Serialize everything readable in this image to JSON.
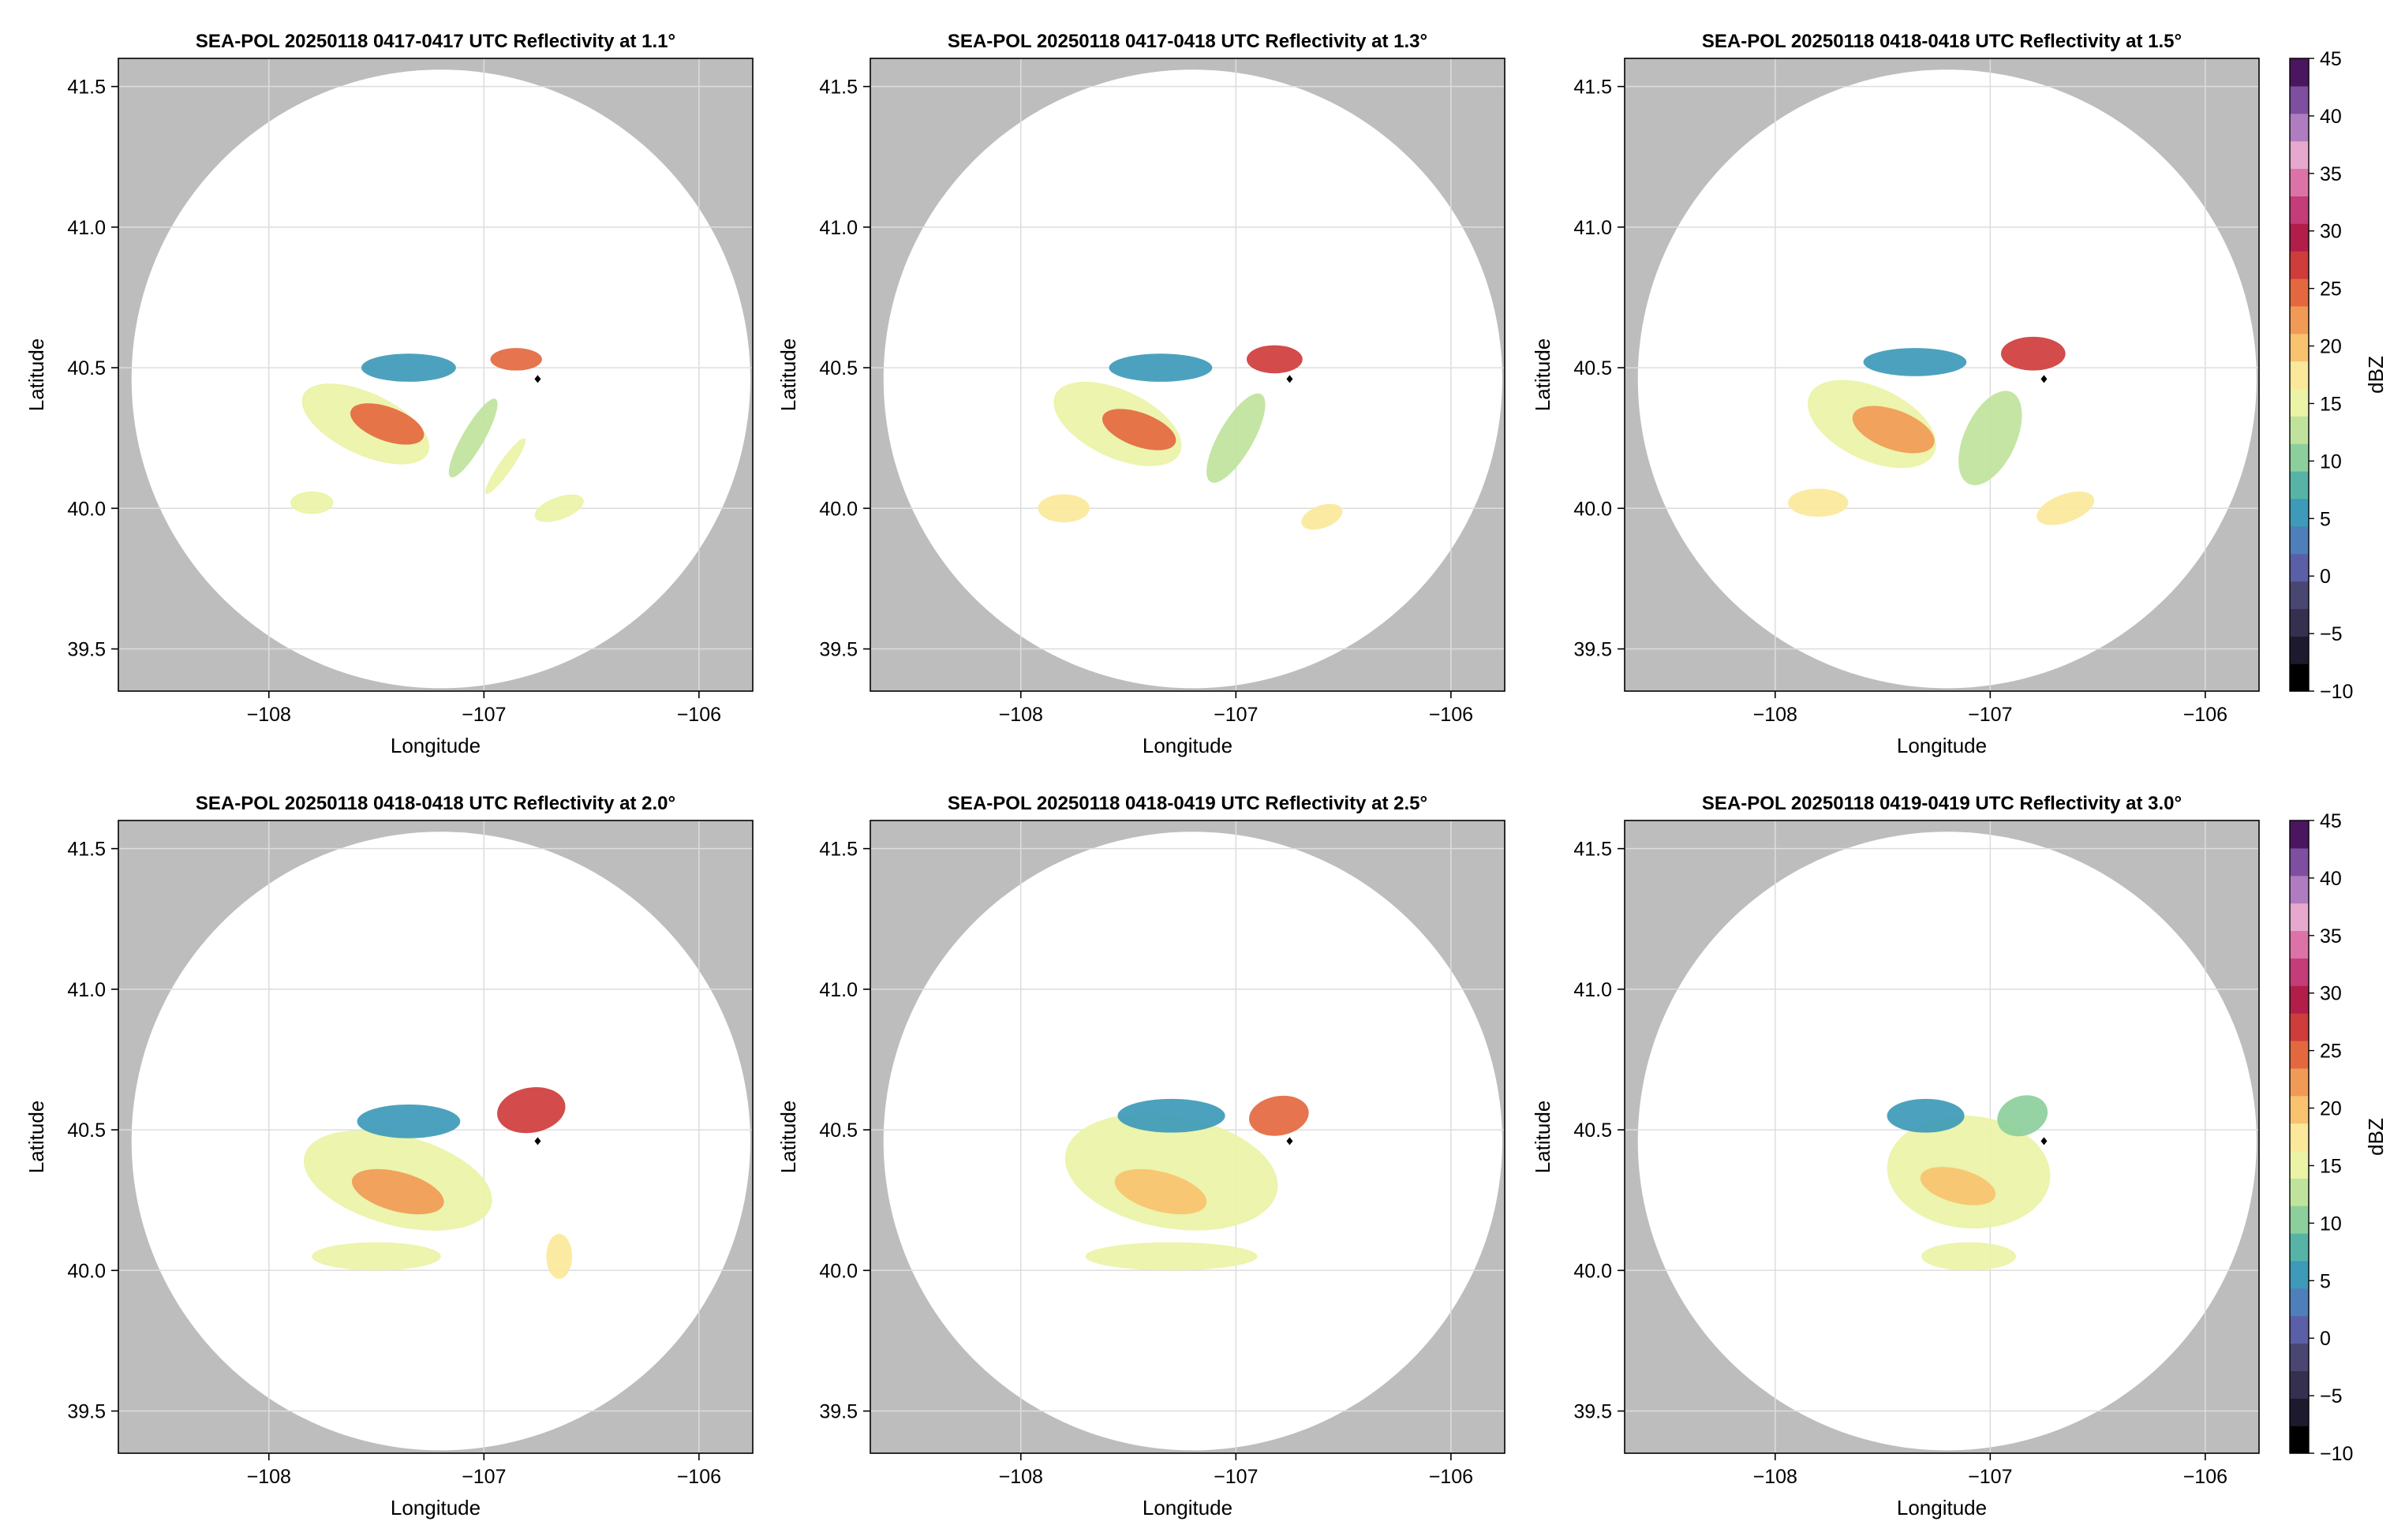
{
  "figure": {
    "colorbar": {
      "label": "dBZ",
      "ticks": [
        45,
        40,
        35,
        30,
        25,
        20,
        15,
        10,
        5,
        0,
        -5,
        -10
      ],
      "tick_labels": [
        "45",
        "40",
        "35",
        "30",
        "25",
        "20",
        "15",
        "10",
        "5",
        "0",
        "−5",
        "−10"
      ],
      "range": [
        -10,
        45
      ],
      "colormap": [
        "#000000",
        "#1d1a2e",
        "#35304f",
        "#4a4672",
        "#5a5fa8",
        "#4f7fba",
        "#3d9ab8",
        "#56b3a6",
        "#8ccf9c",
        "#bfe39c",
        "#eaf3a6",
        "#fbe89a",
        "#f8c26f",
        "#f19a55",
        "#e4683f",
        "#cf3c3c",
        "#b21e4a",
        "#c43c78",
        "#dd72a6",
        "#e6a8cc",
        "#b07cc0",
        "#7e4fa1",
        "#4a1660"
      ]
    },
    "colors": {
      "out_of_range": "#bdbdbd",
      "radar_coverage": "#ffffff",
      "grid": "#dddddd",
      "radar_site": "#000000"
    }
  },
  "chart_data": [
    {
      "type": "heatmap",
      "title": "SEA-POL 20250118 0417-0417 UTC Reflectivity at 1.1°",
      "xlabel": "Longitude",
      "ylabel": "Latitude",
      "xlim": [
        -108.7,
        -105.75
      ],
      "ylim": [
        39.35,
        41.6
      ],
      "xticks": [
        -108,
        -107,
        -106
      ],
      "xtick_labels": [
        "−108",
        "−107",
        "−106"
      ],
      "yticks": [
        39.5,
        40.0,
        40.5,
        41.0,
        41.5
      ],
      "ytick_labels": [
        "39.5",
        "40.0",
        "40.5",
        "41.0",
        "41.5"
      ],
      "grid": true,
      "radar_site": {
        "lon": -106.75,
        "lat": 40.46
      },
      "coverage_circle": {
        "center_lon": -107.2,
        "center_lat": 40.46,
        "radius_lat_deg": 1.1
      },
      "echoes": [
        {
          "lon": -107.55,
          "lat": 40.3,
          "rx": 0.32,
          "ry": 0.11,
          "rot": 25,
          "dbz": 16
        },
        {
          "lon": -107.45,
          "lat": 40.3,
          "rx": 0.18,
          "ry": 0.06,
          "rot": 20,
          "dbz": 24
        },
        {
          "lon": -107.35,
          "lat": 40.5,
          "rx": 0.22,
          "ry": 0.05,
          "rot": 0,
          "dbz": 6
        },
        {
          "lon": -106.85,
          "lat": 40.53,
          "rx": 0.12,
          "ry": 0.04,
          "rot": 0,
          "dbz": 26
        },
        {
          "lon": -107.05,
          "lat": 40.25,
          "rx": 0.05,
          "ry": 0.16,
          "rot": 30,
          "dbz": 12
        },
        {
          "lon": -106.9,
          "lat": 40.15,
          "rx": 0.03,
          "ry": 0.12,
          "rot": 35,
          "dbz": 14
        },
        {
          "lon": -107.8,
          "lat": 40.02,
          "rx": 0.1,
          "ry": 0.04,
          "rot": 0,
          "dbz": 16
        },
        {
          "lon": -106.65,
          "lat": 40.0,
          "rx": 0.12,
          "ry": 0.04,
          "rot": -20,
          "dbz": 15
        }
      ]
    },
    {
      "type": "heatmap",
      "title": "SEA-POL 20250118 0417-0418 UTC Reflectivity at 1.3°",
      "xlabel": "Longitude",
      "ylabel": "Latitude",
      "xlim": [
        -108.7,
        -105.75
      ],
      "ylim": [
        39.35,
        41.6
      ],
      "xticks": [
        -108,
        -107,
        -106
      ],
      "xtick_labels": [
        "−108",
        "−107",
        "−106"
      ],
      "yticks": [
        39.5,
        40.0,
        40.5,
        41.0,
        41.5
      ],
      "ytick_labels": [
        "39.5",
        "40.0",
        "40.5",
        "41.0",
        "41.5"
      ],
      "grid": true,
      "radar_site": {
        "lon": -106.75,
        "lat": 40.46
      },
      "coverage_circle": {
        "center_lon": -107.2,
        "center_lat": 40.46,
        "radius_lat_deg": 1.1
      },
      "echoes": [
        {
          "lon": -107.55,
          "lat": 40.3,
          "rx": 0.32,
          "ry": 0.12,
          "rot": 25,
          "dbz": 16
        },
        {
          "lon": -107.45,
          "lat": 40.28,
          "rx": 0.18,
          "ry": 0.06,
          "rot": 20,
          "dbz": 24
        },
        {
          "lon": -107.35,
          "lat": 40.5,
          "rx": 0.24,
          "ry": 0.05,
          "rot": 0,
          "dbz": 6
        },
        {
          "lon": -106.82,
          "lat": 40.53,
          "rx": 0.13,
          "ry": 0.05,
          "rot": 0,
          "dbz": 27
        },
        {
          "lon": -107.0,
          "lat": 40.25,
          "rx": 0.08,
          "ry": 0.18,
          "rot": 30,
          "dbz": 12
        },
        {
          "lon": -107.8,
          "lat": 40.0,
          "rx": 0.12,
          "ry": 0.05,
          "rot": 0,
          "dbz": 17
        },
        {
          "lon": -106.6,
          "lat": 39.97,
          "rx": 0.1,
          "ry": 0.04,
          "rot": -20,
          "dbz": 18
        }
      ]
    },
    {
      "type": "heatmap",
      "title": "SEA-POL 20250118 0418-0418 UTC Reflectivity at 1.5°",
      "xlabel": "Longitude",
      "ylabel": "Latitude",
      "xlim": [
        -108.7,
        -105.75
      ],
      "ylim": [
        39.35,
        41.6
      ],
      "xticks": [
        -108,
        -107,
        -106
      ],
      "xtick_labels": [
        "−108",
        "−107",
        "−106"
      ],
      "yticks": [
        39.5,
        40.0,
        40.5,
        41.0,
        41.5
      ],
      "ytick_labels": [
        "39.5",
        "40.0",
        "40.5",
        "41.0",
        "41.5"
      ],
      "grid": true,
      "radar_site": {
        "lon": -106.75,
        "lat": 40.46
      },
      "coverage_circle": {
        "center_lon": -107.2,
        "center_lat": 40.46,
        "radius_lat_deg": 1.1
      },
      "echoes": [
        {
          "lon": -107.55,
          "lat": 40.3,
          "rx": 0.32,
          "ry": 0.13,
          "rot": 25,
          "dbz": 16
        },
        {
          "lon": -107.45,
          "lat": 40.28,
          "rx": 0.2,
          "ry": 0.07,
          "rot": 20,
          "dbz": 23
        },
        {
          "lon": -107.35,
          "lat": 40.52,
          "rx": 0.24,
          "ry": 0.05,
          "rot": 0,
          "dbz": 6
        },
        {
          "lon": -106.8,
          "lat": 40.55,
          "rx": 0.15,
          "ry": 0.06,
          "rot": 0,
          "dbz": 27
        },
        {
          "lon": -107.0,
          "lat": 40.25,
          "rx": 0.12,
          "ry": 0.18,
          "rot": 25,
          "dbz": 12
        },
        {
          "lon": -107.8,
          "lat": 40.02,
          "rx": 0.14,
          "ry": 0.05,
          "rot": 0,
          "dbz": 17
        },
        {
          "lon": -106.65,
          "lat": 40.0,
          "rx": 0.14,
          "ry": 0.05,
          "rot": -20,
          "dbz": 18
        }
      ]
    },
    {
      "type": "heatmap",
      "title": "SEA-POL 20250118 0418-0418 UTC Reflectivity at 2.0°",
      "xlabel": "Longitude",
      "ylabel": "Latitude",
      "xlim": [
        -108.7,
        -105.75
      ],
      "ylim": [
        39.35,
        41.6
      ],
      "xticks": [
        -108,
        -107,
        -106
      ],
      "xtick_labels": [
        "−108",
        "−107",
        "−106"
      ],
      "yticks": [
        39.5,
        40.0,
        40.5,
        41.0,
        41.5
      ],
      "ytick_labels": [
        "39.5",
        "40.0",
        "40.5",
        "41.0",
        "41.5"
      ],
      "grid": true,
      "radar_site": {
        "lon": -106.75,
        "lat": 40.46
      },
      "coverage_circle": {
        "center_lon": -107.2,
        "center_lat": 40.46,
        "radius_lat_deg": 1.1
      },
      "echoes": [
        {
          "lon": -107.4,
          "lat": 40.32,
          "rx": 0.45,
          "ry": 0.16,
          "rot": 15,
          "dbz": 16
        },
        {
          "lon": -107.4,
          "lat": 40.28,
          "rx": 0.22,
          "ry": 0.07,
          "rot": 15,
          "dbz": 23
        },
        {
          "lon": -107.35,
          "lat": 40.53,
          "rx": 0.24,
          "ry": 0.06,
          "rot": 0,
          "dbz": 5
        },
        {
          "lon": -106.78,
          "lat": 40.57,
          "rx": 0.16,
          "ry": 0.08,
          "rot": -10,
          "dbz": 28
        },
        {
          "lon": -107.5,
          "lat": 40.05,
          "rx": 0.3,
          "ry": 0.05,
          "rot": 0,
          "dbz": 15
        },
        {
          "lon": -106.65,
          "lat": 40.05,
          "rx": 0.06,
          "ry": 0.08,
          "rot": 0,
          "dbz": 18
        }
      ]
    },
    {
      "type": "heatmap",
      "title": "SEA-POL 20250118 0418-0419 UTC Reflectivity at 2.5°",
      "xlabel": "Longitude",
      "ylabel": "Latitude",
      "xlim": [
        -108.7,
        -105.75
      ],
      "ylim": [
        39.35,
        41.6
      ],
      "xticks": [
        -108,
        -107,
        -106
      ],
      "xtick_labels": [
        "−108",
        "−107",
        "−106"
      ],
      "yticks": [
        39.5,
        40.0,
        40.5,
        41.0,
        41.5
      ],
      "ytick_labels": [
        "39.5",
        "40.0",
        "40.5",
        "41.0",
        "41.5"
      ],
      "grid": true,
      "radar_site": {
        "lon": -106.75,
        "lat": 40.46
      },
      "coverage_circle": {
        "center_lon": -107.2,
        "center_lat": 40.46,
        "radius_lat_deg": 1.1
      },
      "echoes": [
        {
          "lon": -107.3,
          "lat": 40.35,
          "rx": 0.5,
          "ry": 0.2,
          "rot": 10,
          "dbz": 15
        },
        {
          "lon": -107.35,
          "lat": 40.28,
          "rx": 0.22,
          "ry": 0.07,
          "rot": 15,
          "dbz": 21
        },
        {
          "lon": -107.3,
          "lat": 40.55,
          "rx": 0.25,
          "ry": 0.06,
          "rot": 0,
          "dbz": 6
        },
        {
          "lon": -106.8,
          "lat": 40.55,
          "rx": 0.14,
          "ry": 0.07,
          "rot": -10,
          "dbz": 25
        },
        {
          "lon": -107.3,
          "lat": 40.05,
          "rx": 0.4,
          "ry": 0.05,
          "rot": 0,
          "dbz": 15
        }
      ]
    },
    {
      "type": "heatmap",
      "title": "SEA-POL 20250118 0419-0419 UTC Reflectivity at 3.0°",
      "xlabel": "Longitude",
      "ylabel": "Latitude",
      "xlim": [
        -108.7,
        -105.75
      ],
      "ylim": [
        39.35,
        41.6
      ],
      "xticks": [
        -108,
        -107,
        -106
      ],
      "xtick_labels": [
        "−108",
        "−107",
        "−106"
      ],
      "yticks": [
        39.5,
        40.0,
        40.5,
        41.0,
        41.5
      ],
      "ytick_labels": [
        "39.5",
        "40.0",
        "40.5",
        "41.0",
        "41.5"
      ],
      "grid": true,
      "radar_site": {
        "lon": -106.75,
        "lat": 40.46
      },
      "coverage_circle": {
        "center_lon": -107.2,
        "center_lat": 40.46,
        "radius_lat_deg": 1.1
      },
      "echoes": [
        {
          "lon": -107.1,
          "lat": 40.35,
          "rx": 0.38,
          "ry": 0.2,
          "rot": 5,
          "dbz": 15
        },
        {
          "lon": -107.15,
          "lat": 40.3,
          "rx": 0.18,
          "ry": 0.06,
          "rot": 15,
          "dbz": 19
        },
        {
          "lon": -107.3,
          "lat": 40.55,
          "rx": 0.18,
          "ry": 0.06,
          "rot": 0,
          "dbz": 5
        },
        {
          "lon": -106.85,
          "lat": 40.55,
          "rx": 0.12,
          "ry": 0.07,
          "rot": -20,
          "dbz": 11
        },
        {
          "lon": -107.1,
          "lat": 40.05,
          "rx": 0.22,
          "ry": 0.05,
          "rot": 0,
          "dbz": 15
        }
      ]
    }
  ]
}
